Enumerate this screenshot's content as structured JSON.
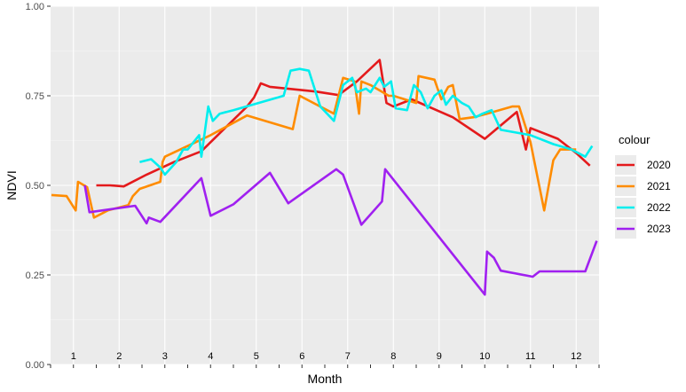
{
  "chart_data": {
    "type": "line",
    "xlabel": "Month",
    "ylabel": "NDVI",
    "ylim": [
      0,
      1
    ],
    "xlim": [
      0.5,
      12.5
    ],
    "y_ticks": [
      "0.00",
      "0.25",
      "0.50",
      "0.75",
      "1.00"
    ],
    "y_tick_values": [
      0,
      0.25,
      0.5,
      0.75,
      1.0
    ],
    "month_labels": [
      "1",
      "2",
      "3",
      "4",
      "5",
      "6",
      "7",
      "8",
      "9",
      "10",
      "11",
      "12"
    ],
    "legend_title": "colour",
    "grid": true,
    "legend_position": "right",
    "series": [
      {
        "name": "2020",
        "color": "#e41a1c",
        "x": [
          1.5,
          1.8,
          2.1,
          2.6,
          3.2,
          3.8,
          4.3,
          4.8,
          4.95,
          5.1,
          5.3,
          6.3,
          6.8,
          7.2,
          7.7,
          7.85,
          8.0,
          8.4,
          9.3,
          10.0,
          10.7,
          10.9,
          11.0,
          11.6,
          12.0,
          12.3
        ],
        "y": [
          0.5,
          0.5,
          0.497,
          0.53,
          0.565,
          0.595,
          0.658,
          0.72,
          0.745,
          0.785,
          0.775,
          0.762,
          0.752,
          0.79,
          0.85,
          0.73,
          0.72,
          0.74,
          0.69,
          0.63,
          0.705,
          0.6,
          0.66,
          0.63,
          0.59,
          0.555
        ]
      },
      {
        "name": "2021",
        "color": "#ff8c00",
        "x": [
          0.52,
          0.85,
          1.05,
          1.1,
          1.3,
          1.45,
          1.75,
          2.2,
          2.3,
          2.45,
          2.9,
          2.95,
          3.0,
          3.5,
          4.0,
          4.8,
          5.8,
          5.95,
          6.7,
          6.9,
          7.15,
          7.25,
          7.3,
          7.5,
          7.9,
          8.0,
          8.5,
          8.55,
          8.9,
          9.05,
          9.2,
          9.3,
          9.45,
          9.75,
          10.05,
          10.6,
          10.75,
          11.0,
          11.3,
          11.5,
          11.65,
          12.0
        ],
        "y": [
          0.473,
          0.47,
          0.43,
          0.51,
          0.495,
          0.41,
          0.43,
          0.445,
          0.47,
          0.49,
          0.51,
          0.565,
          0.58,
          0.61,
          0.64,
          0.695,
          0.657,
          0.75,
          0.7,
          0.8,
          0.79,
          0.7,
          0.79,
          0.78,
          0.75,
          0.75,
          0.73,
          0.805,
          0.795,
          0.74,
          0.775,
          0.78,
          0.685,
          0.69,
          0.7,
          0.72,
          0.72,
          0.62,
          0.43,
          0.57,
          0.6,
          0.6
        ]
      },
      {
        "name": "2022",
        "color": "#00eeee",
        "x": [
          2.45,
          2.7,
          2.9,
          3.0,
          3.25,
          3.4,
          3.5,
          3.75,
          3.8,
          3.95,
          4.05,
          4.2,
          4.5,
          5.6,
          5.75,
          5.95,
          6.15,
          6.4,
          6.7,
          6.9,
          7.1,
          7.2,
          7.4,
          7.5,
          7.7,
          7.8,
          7.95,
          8.05,
          8.3,
          8.45,
          8.6,
          8.75,
          8.9,
          9.05,
          9.15,
          9.3,
          9.5,
          9.65,
          9.8,
          9.95,
          10.15,
          10.35,
          11.0,
          11.5,
          11.9,
          12.2,
          12.35
        ],
        "y": [
          0.565,
          0.573,
          0.55,
          0.53,
          0.565,
          0.6,
          0.6,
          0.64,
          0.58,
          0.72,
          0.68,
          0.7,
          0.71,
          0.75,
          0.82,
          0.825,
          0.82,
          0.72,
          0.68,
          0.78,
          0.8,
          0.76,
          0.77,
          0.76,
          0.8,
          0.775,
          0.79,
          0.715,
          0.71,
          0.78,
          0.76,
          0.715,
          0.75,
          0.765,
          0.725,
          0.75,
          0.73,
          0.72,
          0.69,
          0.7,
          0.71,
          0.655,
          0.64,
          0.615,
          0.6,
          0.58,
          0.61
        ]
      },
      {
        "name": "2023",
        "color": "#a020f0",
        "x": [
          1.25,
          1.35,
          2.35,
          2.6,
          2.65,
          2.9,
          3.8,
          4.0,
          4.5,
          5.3,
          5.7,
          6.75,
          6.9,
          7.1,
          7.3,
          7.75,
          7.82,
          10.0,
          10.05,
          10.2,
          10.35,
          11.05,
          11.2,
          12.2,
          12.45
        ],
        "y": [
          0.5,
          0.425,
          0.443,
          0.394,
          0.41,
          0.398,
          0.52,
          0.415,
          0.447,
          0.535,
          0.45,
          0.545,
          0.53,
          0.46,
          0.39,
          0.455,
          0.545,
          0.195,
          0.315,
          0.298,
          0.262,
          0.245,
          0.26,
          0.26,
          0.345
        ]
      }
    ]
  }
}
